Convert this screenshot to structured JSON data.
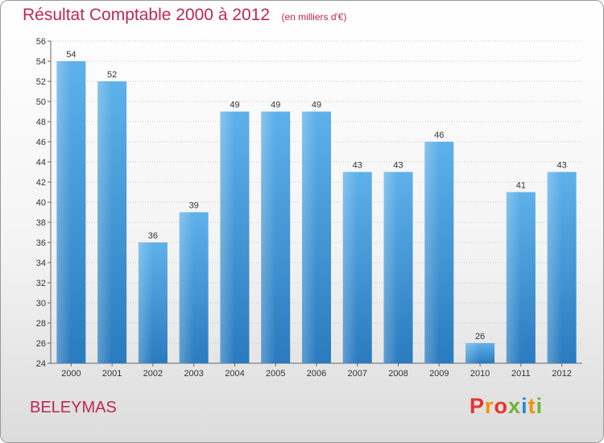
{
  "header": {
    "title": "Résultat Comptable 2000 à 2012",
    "subtitle": "(en milliers d'€)"
  },
  "footer": {
    "place": "BELEYMAS",
    "logo_letters": [
      "P",
      "r",
      "o",
      "x",
      "i",
      "t",
      "i"
    ],
    "logo_colors": [
      "#e8332a",
      "#f39200",
      "#e8332a",
      "#6fb33b",
      "#1d8fd1",
      "#f39200",
      "#6fb33b"
    ]
  },
  "chart_data": {
    "type": "bar",
    "title": "Résultat Comptable 2000 à 2012",
    "subtitle": "(en milliers d'€)",
    "categories": [
      "2000",
      "2001",
      "2002",
      "2003",
      "2004",
      "2005",
      "2006",
      "2007",
      "2008",
      "2009",
      "2010",
      "2011",
      "2012"
    ],
    "values": [
      54,
      52,
      36,
      39,
      49,
      49,
      49,
      43,
      43,
      46,
      26,
      41,
      43
    ],
    "ylim": [
      24,
      56
    ],
    "yticks": [
      24,
      26,
      28,
      30,
      32,
      34,
      36,
      38,
      40,
      42,
      44,
      46,
      48,
      50,
      52,
      54,
      56
    ],
    "grid": true,
    "bar_color": "#3d93d7"
  }
}
